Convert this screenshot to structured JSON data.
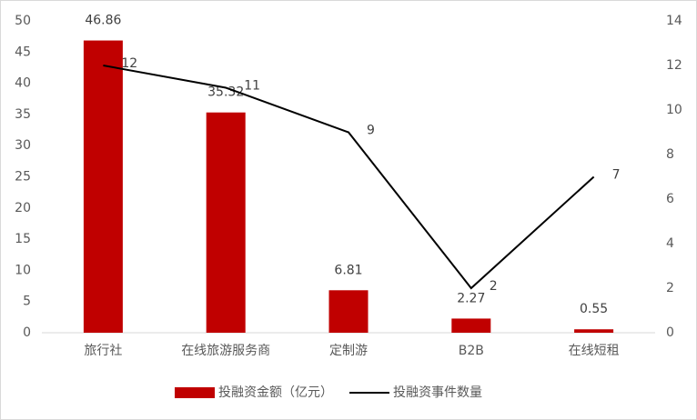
{
  "chart_data": {
    "type": "bar",
    "categories": [
      "旅行社",
      "在线旅游服务商",
      "定制游",
      "B2B",
      "在线短租"
    ],
    "series": [
      {
        "name": "投融资金额（亿元）",
        "type": "bar",
        "color": "#c00000",
        "values": [
          46.86,
          35.32,
          6.81,
          2.27,
          0.55
        ]
      },
      {
        "name": "投融资事件数量",
        "type": "line",
        "axis": "y2",
        "color": "#000000",
        "values": [
          12,
          11,
          9,
          2,
          7
        ]
      }
    ],
    "ylim": [
      0,
      50
    ],
    "yticks": [
      0,
      5,
      10,
      15,
      20,
      25,
      30,
      35,
      40,
      45,
      50
    ],
    "y2lim": [
      0,
      14
    ],
    "y2ticks": [
      0,
      2,
      4,
      6,
      8,
      10,
      12,
      14
    ],
    "legend": "bottom"
  }
}
